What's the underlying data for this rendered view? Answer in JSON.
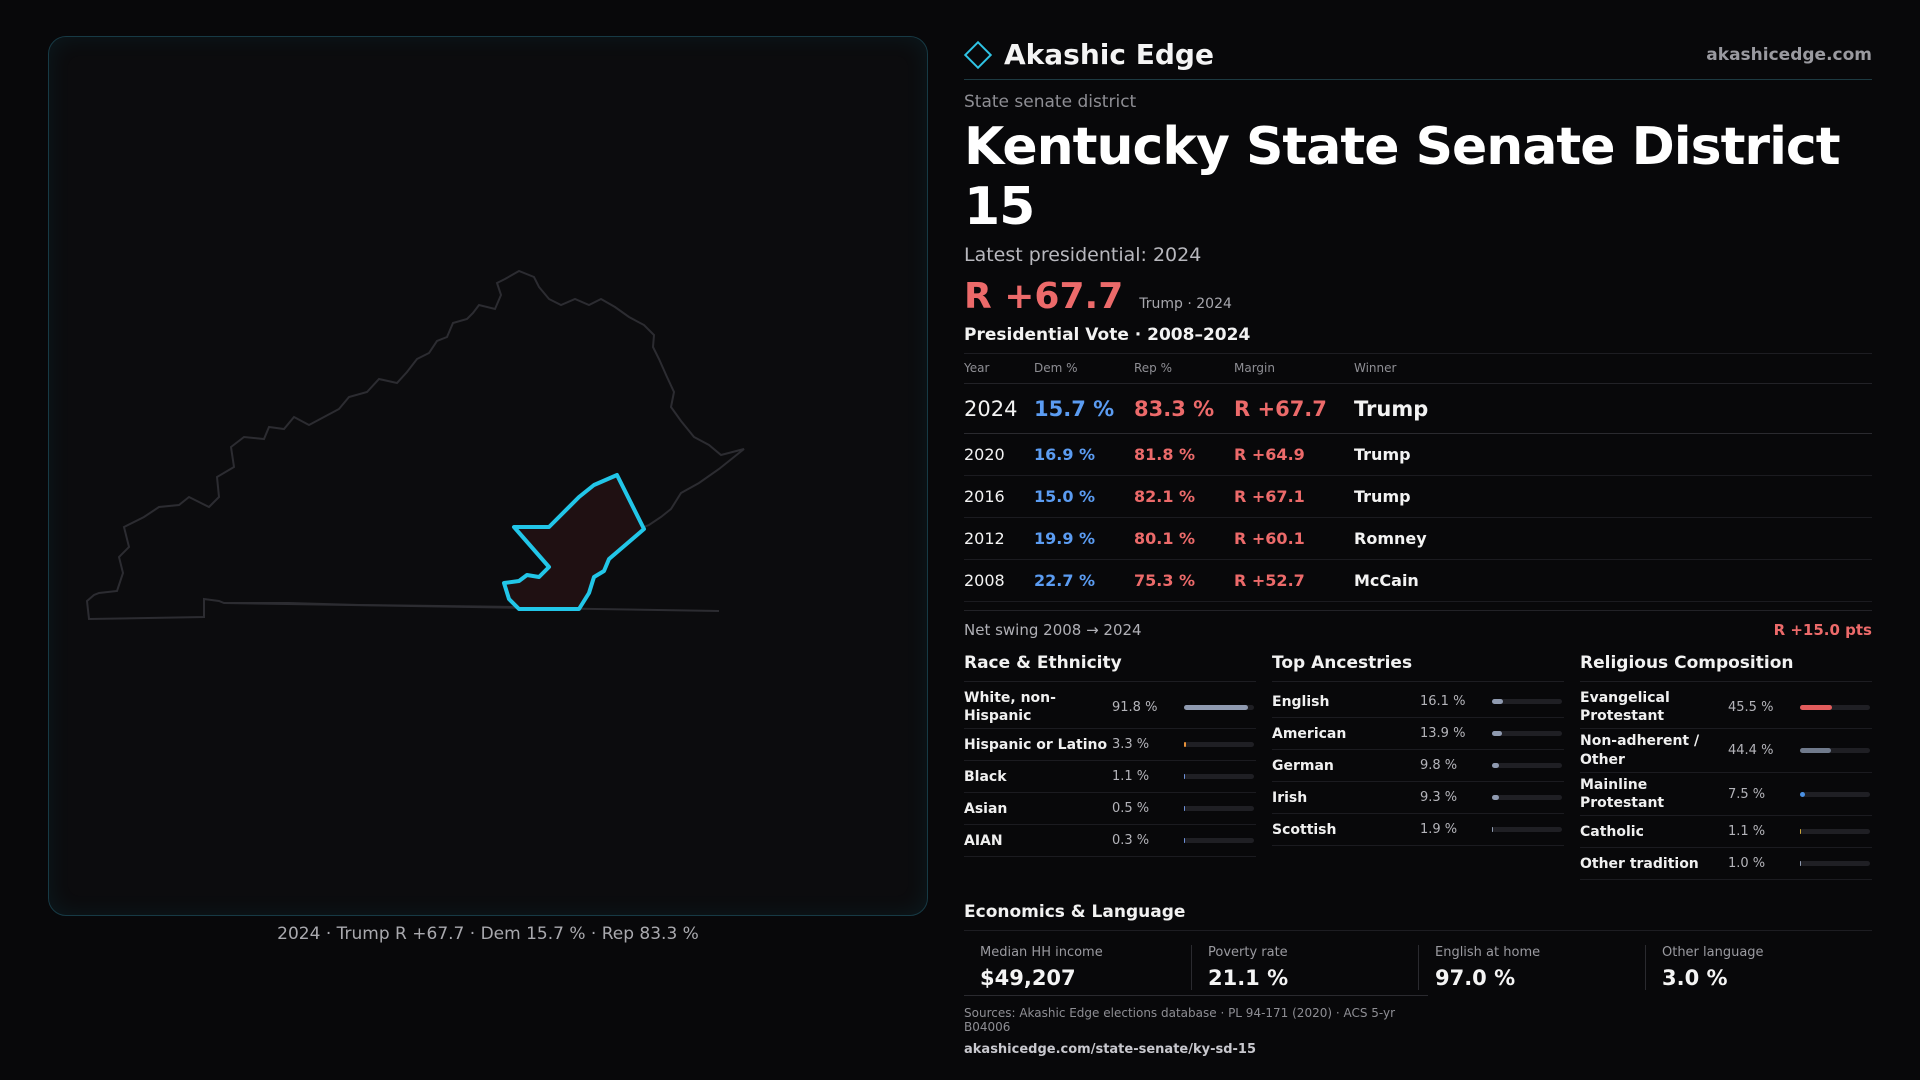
{
  "brand": {
    "name": "Akashic Edge",
    "url": "akashicedge.com",
    "icon": "diamond-icon",
    "accent": "#2fc3e4"
  },
  "district": {
    "kind": "State senate district",
    "title": "Kentucky State Senate District 15",
    "latest_label": "Latest presidential: 2024",
    "margin": "R +67.7",
    "margin_sub": "Trump · 2024"
  },
  "map": {
    "caption": "2024 · Trump R +67.7 · Dem 15.7 % · Rep 83.3 %",
    "highlight_color": "#22c6e8"
  },
  "votes": {
    "heading": "Presidential Vote · 2008–2024",
    "columns": [
      "Year",
      "Dem %",
      "Rep %",
      "Margin",
      "Winner"
    ],
    "rows": [
      {
        "year": "2024",
        "dem": "15.7 %",
        "rep": "83.3 %",
        "margin": "R +67.7",
        "winner": "Trump"
      },
      {
        "year": "2020",
        "dem": "16.9 %",
        "rep": "81.8 %",
        "margin": "R +64.9",
        "winner": "Trump"
      },
      {
        "year": "2016",
        "dem": "15.0 %",
        "rep": "82.1 %",
        "margin": "R +67.1",
        "winner": "Trump"
      },
      {
        "year": "2012",
        "dem": "19.9 %",
        "rep": "80.1 %",
        "margin": "R +60.1",
        "winner": "Romney"
      },
      {
        "year": "2008",
        "dem": "22.7 %",
        "rep": "75.3 %",
        "margin": "R +52.7",
        "winner": "McCain"
      }
    ],
    "swing_label": "Net swing 2008 → 2024",
    "swing_value": "R +15.0 pts"
  },
  "race": {
    "title": "Race & Ethnicity",
    "items": [
      {
        "label": "White, non-Hispanic",
        "value": "91.8 %",
        "pct": 91.8,
        "color": "#8f9ab0"
      },
      {
        "label": "Hispanic or Latino",
        "value": "3.3 %",
        "pct": 3.3,
        "color": "#e8923a"
      },
      {
        "label": "Black",
        "value": "1.1 %",
        "pct": 1.1,
        "color": "#6d8fd8"
      },
      {
        "label": "Asian",
        "value": "0.5 %",
        "pct": 0.5,
        "color": "#6d8fd8"
      },
      {
        "label": "AIAN",
        "value": "0.3 %",
        "pct": 0.3,
        "color": "#6d8fd8"
      }
    ]
  },
  "ancestry": {
    "title": "Top Ancestries",
    "items": [
      {
        "label": "English",
        "value": "16.1 %",
        "pct": 16.1,
        "color": "#8f9ab0"
      },
      {
        "label": "American",
        "value": "13.9 %",
        "pct": 13.9,
        "color": "#8f9ab0"
      },
      {
        "label": "German",
        "value": "9.8 %",
        "pct": 9.8,
        "color": "#8f9ab0"
      },
      {
        "label": "Irish",
        "value": "9.3 %",
        "pct": 9.3,
        "color": "#8f9ab0"
      },
      {
        "label": "Scottish",
        "value": "1.9 %",
        "pct": 1.9,
        "color": "#8f9ab0"
      }
    ]
  },
  "religion": {
    "title": "Religious Composition",
    "items": [
      {
        "label": "Evangelical Protestant",
        "value": "45.5 %",
        "pct": 45.5,
        "color": "#e25c5c"
      },
      {
        "label": "Non-adherent / Other",
        "value": "44.4 %",
        "pct": 44.4,
        "color": "#707a8c"
      },
      {
        "label": "Mainline Protestant",
        "value": "7.5 %",
        "pct": 7.5,
        "color": "#4a90e2"
      },
      {
        "label": "Catholic",
        "value": "1.1 %",
        "pct": 1.1,
        "color": "#c9a43a"
      },
      {
        "label": "Other tradition",
        "value": "1.0 %",
        "pct": 1.0,
        "color": "#8f9ab0"
      }
    ]
  },
  "economics": {
    "title": "Economics & Language",
    "items": [
      {
        "label": "Median HH income",
        "value": "$49,207"
      },
      {
        "label": "Poverty rate",
        "value": "21.1 %"
      },
      {
        "label": "English at home",
        "value": "97.0 %"
      },
      {
        "label": "Other language",
        "value": "3.0 %"
      }
    ]
  },
  "sources": {
    "line": "Sources: Akashic Edge elections database · PL 94-171 (2020) · ACS 5-yr B04006",
    "url": "akashicedge.com/state-senate/ky-sd-15"
  }
}
